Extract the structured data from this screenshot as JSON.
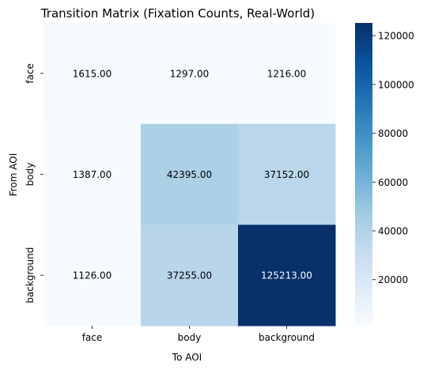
{
  "chart_data": {
    "type": "heatmap",
    "title": "Transition Matrix (Fixation Counts, Real-World)",
    "xlabel": "To AOI",
    "ylabel": "From AOI",
    "x_categories": [
      "face",
      "body",
      "background"
    ],
    "y_categories": [
      "face",
      "body",
      "background"
    ],
    "values": [
      [
        1615,
        1297,
        1216
      ],
      [
        1387,
        42395,
        37152
      ],
      [
        1126,
        37255,
        125213
      ]
    ],
    "value_labels": [
      [
        "1615.00",
        "1297.00",
        "1216.00"
      ],
      [
        "1387.00",
        "42395.00",
        "37152.00"
      ],
      [
        "1126.00",
        "37255.00",
        "125213.00"
      ]
    ],
    "colorbar": {
      "range": [
        1126,
        125213
      ],
      "ticks": [
        20000,
        40000,
        60000,
        80000,
        100000,
        120000
      ],
      "tick_labels": [
        "20000",
        "40000",
        "60000",
        "80000",
        "100000",
        "120000"
      ]
    },
    "colormap": "Blues",
    "colors": {
      "low": "#f7fbff",
      "high": "#08306b"
    }
  }
}
